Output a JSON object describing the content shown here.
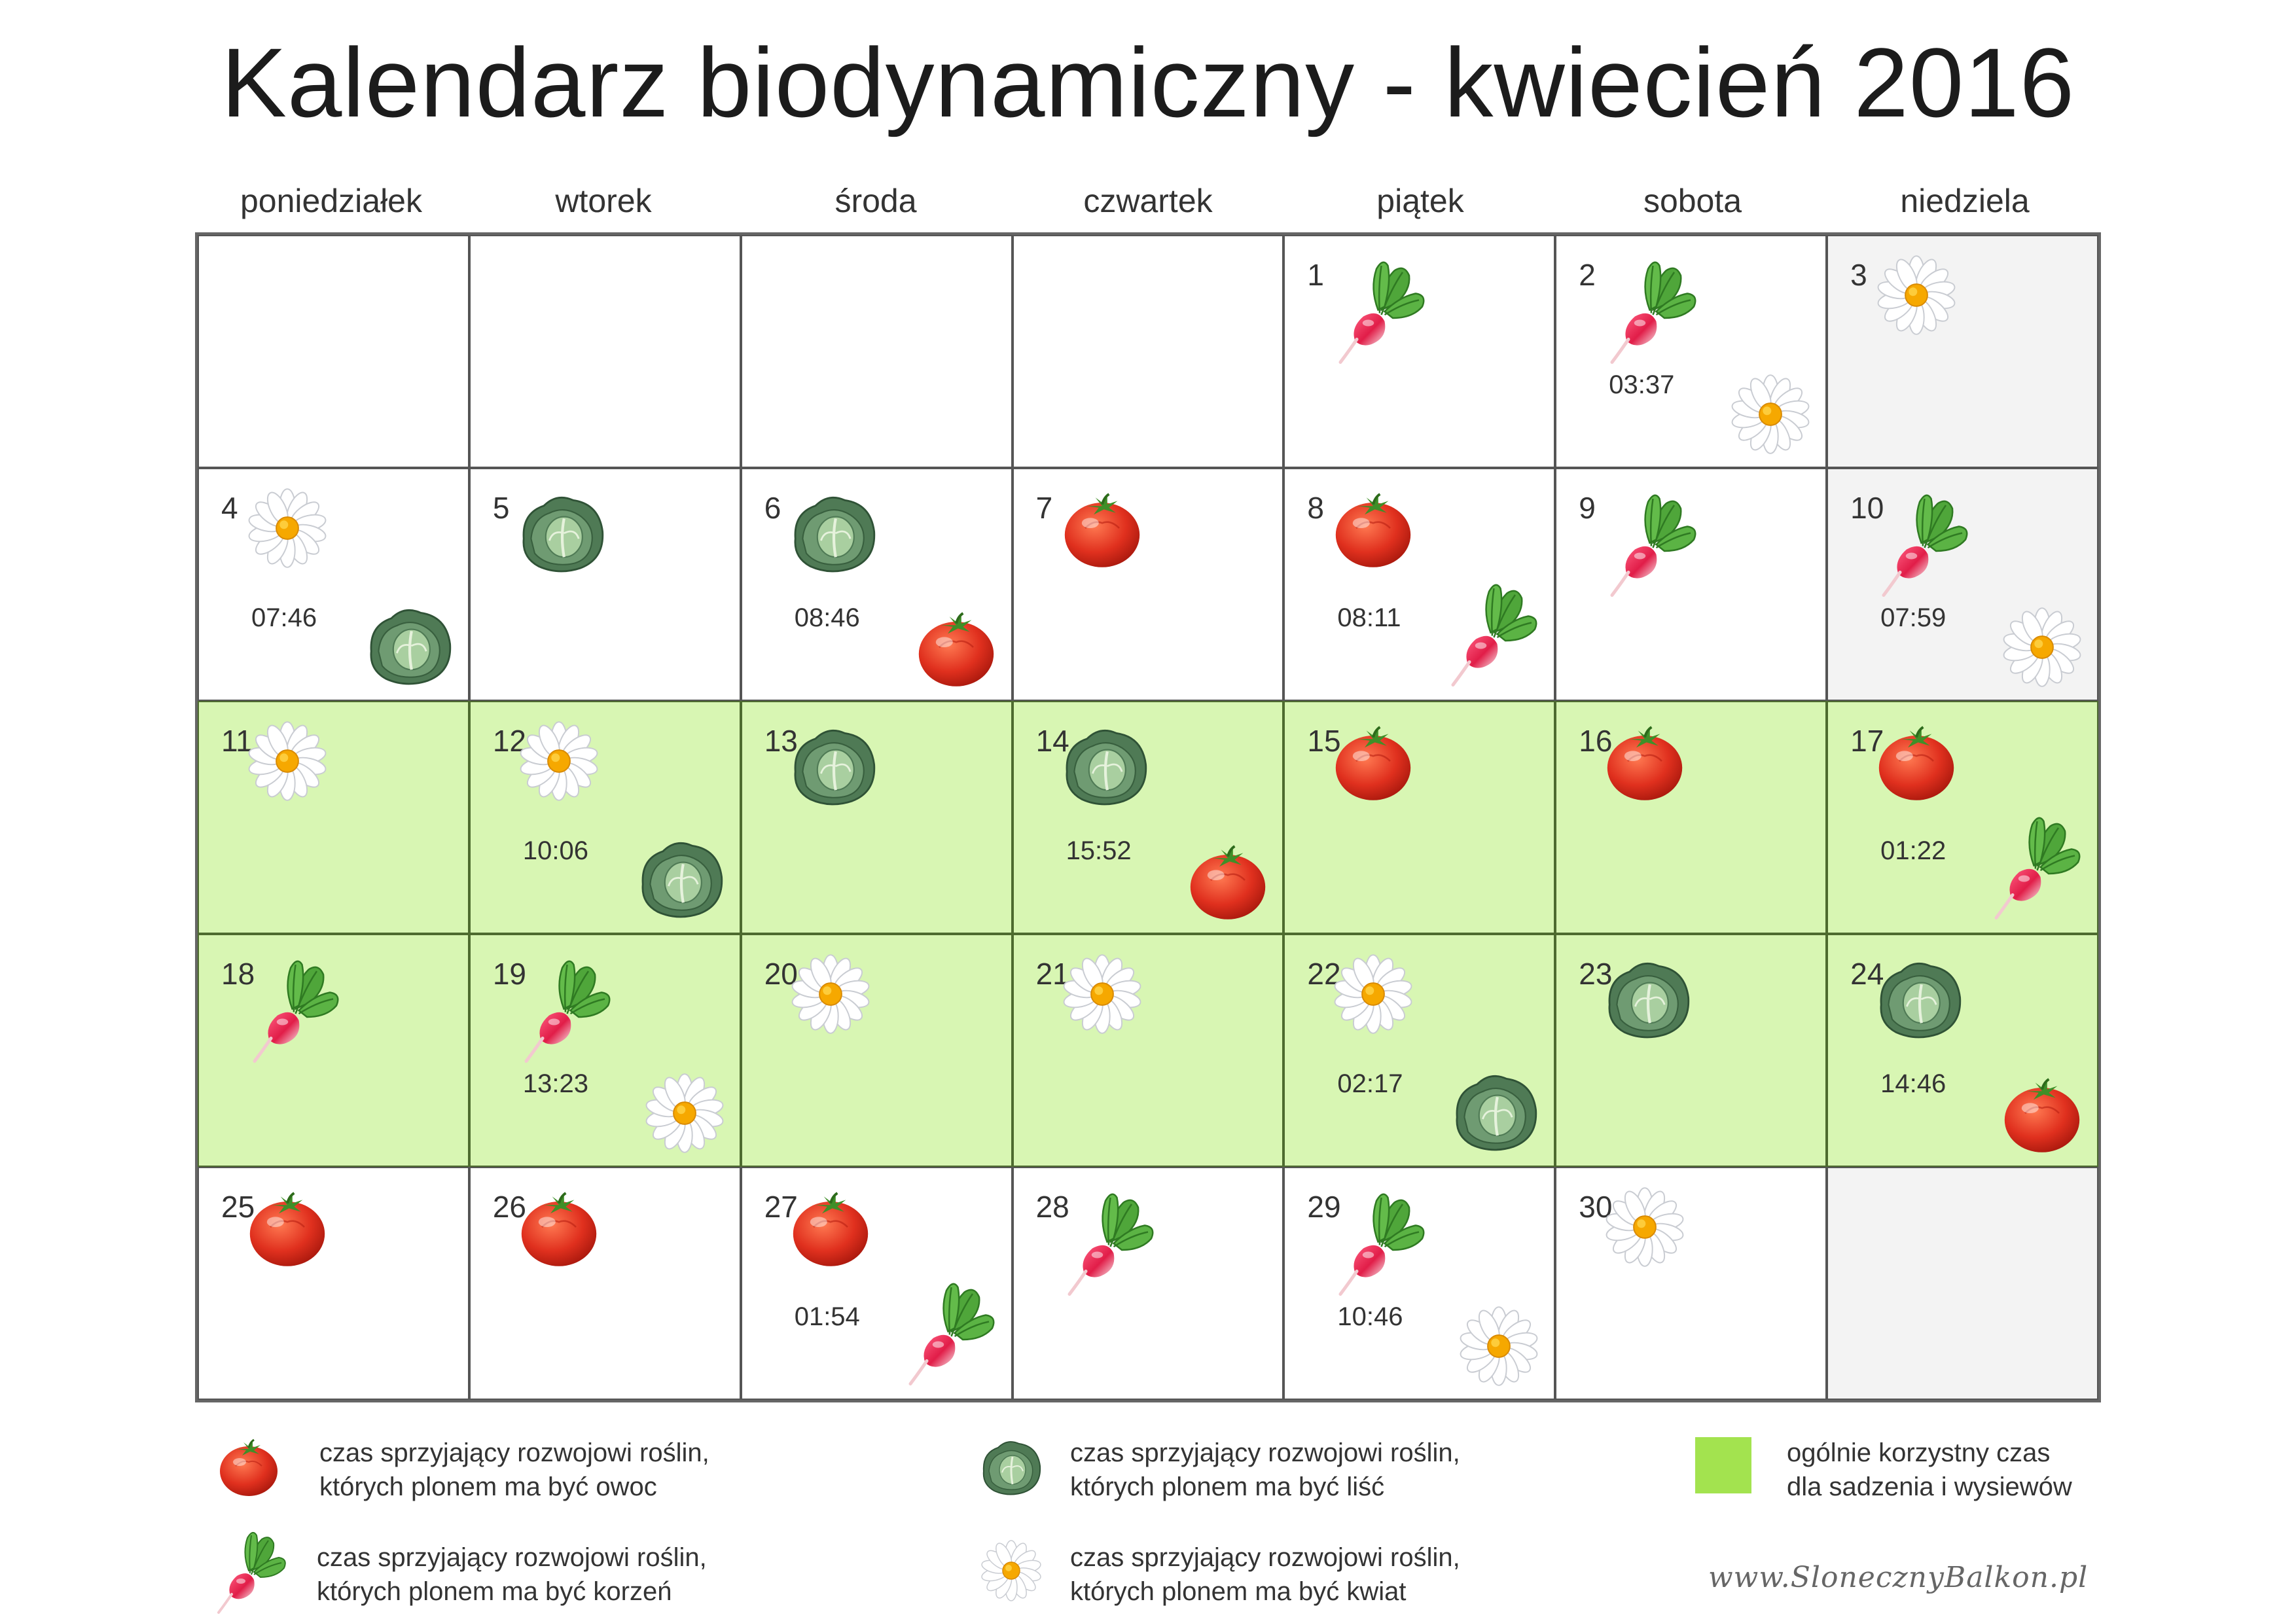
{
  "title": "Kalendarz biodynamiczny - kwiecień 2016",
  "weekdays": [
    "poniedziałek",
    "wtorek",
    "środa",
    "czwartek",
    "piątek",
    "sobota",
    "niedziela"
  ],
  "colors": {
    "good_background": "#d8f6b3",
    "legend_swatch": "#a3e34f",
    "sunday_background": "#f3f3f3"
  },
  "days": [
    {
      "num": "",
      "icons": []
    },
    {
      "num": "",
      "icons": []
    },
    {
      "num": "",
      "icons": []
    },
    {
      "num": "",
      "icons": []
    },
    {
      "num": "1",
      "icons": [
        "radish-icon"
      ],
      "time": ""
    },
    {
      "num": "2",
      "icons": [
        "radish-icon",
        "daisy-icon"
      ],
      "time": "03:37"
    },
    {
      "num": "3",
      "icons": [
        "daisy-icon"
      ],
      "time": ""
    },
    {
      "num": "4",
      "icons": [
        "daisy-icon",
        "cabbage-icon"
      ],
      "time": "07:46"
    },
    {
      "num": "5",
      "icons": [
        "cabbage-icon"
      ],
      "time": ""
    },
    {
      "num": "6",
      "icons": [
        "cabbage-icon",
        "tomato-icon"
      ],
      "time": "08:46"
    },
    {
      "num": "7",
      "icons": [
        "tomato-icon"
      ],
      "time": ""
    },
    {
      "num": "8",
      "icons": [
        "tomato-icon",
        "radish-icon"
      ],
      "time": "08:11"
    },
    {
      "num": "9",
      "icons": [
        "radish-icon"
      ],
      "time": ""
    },
    {
      "num": "10",
      "icons": [
        "radish-icon",
        "daisy-icon"
      ],
      "time": "07:59"
    },
    {
      "num": "11",
      "icons": [
        "daisy-icon"
      ],
      "time": "",
      "good": true
    },
    {
      "num": "12",
      "icons": [
        "daisy-icon",
        "cabbage-icon"
      ],
      "time": "10:06",
      "good": true
    },
    {
      "num": "13",
      "icons": [
        "cabbage-icon"
      ],
      "time": "",
      "good": true
    },
    {
      "num": "14",
      "icons": [
        "cabbage-icon",
        "tomato-icon"
      ],
      "time": "15:52",
      "good": true
    },
    {
      "num": "15",
      "icons": [
        "tomato-icon"
      ],
      "time": "",
      "good": true
    },
    {
      "num": "16",
      "icons": [
        "tomato-icon"
      ],
      "time": "",
      "good": true
    },
    {
      "num": "17",
      "icons": [
        "tomato-icon",
        "radish-icon"
      ],
      "time": "01:22",
      "good": true
    },
    {
      "num": "18",
      "icons": [
        "radish-icon"
      ],
      "time": "",
      "good": true
    },
    {
      "num": "19",
      "icons": [
        "radish-icon",
        "daisy-icon"
      ],
      "time": "13:23",
      "good": true
    },
    {
      "num": "20",
      "icons": [
        "daisy-icon"
      ],
      "time": "",
      "good": true
    },
    {
      "num": "21",
      "icons": [
        "daisy-icon"
      ],
      "time": "",
      "good": true
    },
    {
      "num": "22",
      "icons": [
        "daisy-icon",
        "cabbage-icon"
      ],
      "time": "02:17",
      "good": true
    },
    {
      "num": "23",
      "icons": [
        "cabbage-icon"
      ],
      "time": "",
      "good": true
    },
    {
      "num": "24",
      "icons": [
        "cabbage-icon",
        "tomato-icon"
      ],
      "time": "14:46",
      "good": true
    },
    {
      "num": "25",
      "icons": [
        "tomato-icon"
      ],
      "time": ""
    },
    {
      "num": "26",
      "icons": [
        "tomato-icon"
      ],
      "time": ""
    },
    {
      "num": "27",
      "icons": [
        "tomato-icon",
        "radish-icon"
      ],
      "time": "01:54"
    },
    {
      "num": "28",
      "icons": [
        "radish-icon"
      ],
      "time": ""
    },
    {
      "num": "29",
      "icons": [
        "radish-icon",
        "daisy-icon"
      ],
      "time": "10:46"
    },
    {
      "num": "30",
      "icons": [
        "daisy-icon"
      ],
      "time": ""
    },
    {
      "num": "",
      "icons": []
    }
  ],
  "legend": {
    "fruit": {
      "icon": "tomato-icon",
      "line1": "czas sprzyjający rozwojowi roślin,",
      "line2": "których plonem ma być owoc"
    },
    "leaf": {
      "icon": "cabbage-icon",
      "line1": "czas sprzyjający rozwojowi roślin,",
      "line2": "których plonem ma być liść"
    },
    "good": {
      "line1": "ogólnie korzystny czas",
      "line2": "dla sadzenia i wysiewów"
    },
    "root": {
      "icon": "radish-icon",
      "line1": "czas sprzyjający rozwojowi roślin,",
      "line2": "których plonem ma być korzeń"
    },
    "flower": {
      "icon": "daisy-icon",
      "line1": "czas sprzyjający rozwojowi roślin,",
      "line2": "których plonem ma być kwiat"
    }
  },
  "website": "www.SlonecznyBalkon.pl"
}
